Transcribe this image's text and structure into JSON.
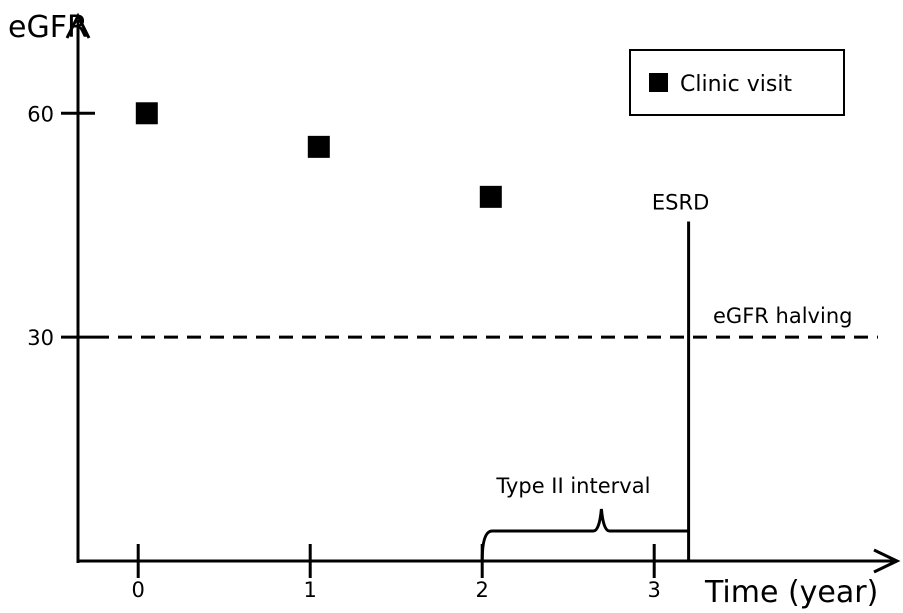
{
  "chart_data": {
    "type": "scatter",
    "xlabel": "Time (year)",
    "ylabel": "eGFR",
    "x_ticks": [
      0,
      1,
      2,
      3
    ],
    "y_ticks": [
      30,
      60
    ],
    "xlim": [
      -0.35,
      4.4
    ],
    "ylim": [
      0,
      72.5
    ],
    "series": [
      {
        "name": "Clinic visit",
        "points": [
          {
            "x": 0.05,
            "y": 60
          },
          {
            "x": 1.05,
            "y": 55.5
          },
          {
            "x": 2.05,
            "y": 48.8
          }
        ]
      }
    ],
    "reference_line": {
      "y": 30,
      "label": "eGFR halving",
      "style": "dashed"
    },
    "event_line": {
      "x": 3.2,
      "y_top": 45.5,
      "label": "ESRD"
    },
    "interval_brace": {
      "x_start": 2.0,
      "x_end": 3.2,
      "label": "Type II interval"
    },
    "legend": {
      "entry": "Clinic visit",
      "position": "top-right"
    },
    "colors": {
      "marker": "#000000",
      "line": "#000000",
      "background": "#ffffff"
    }
  }
}
